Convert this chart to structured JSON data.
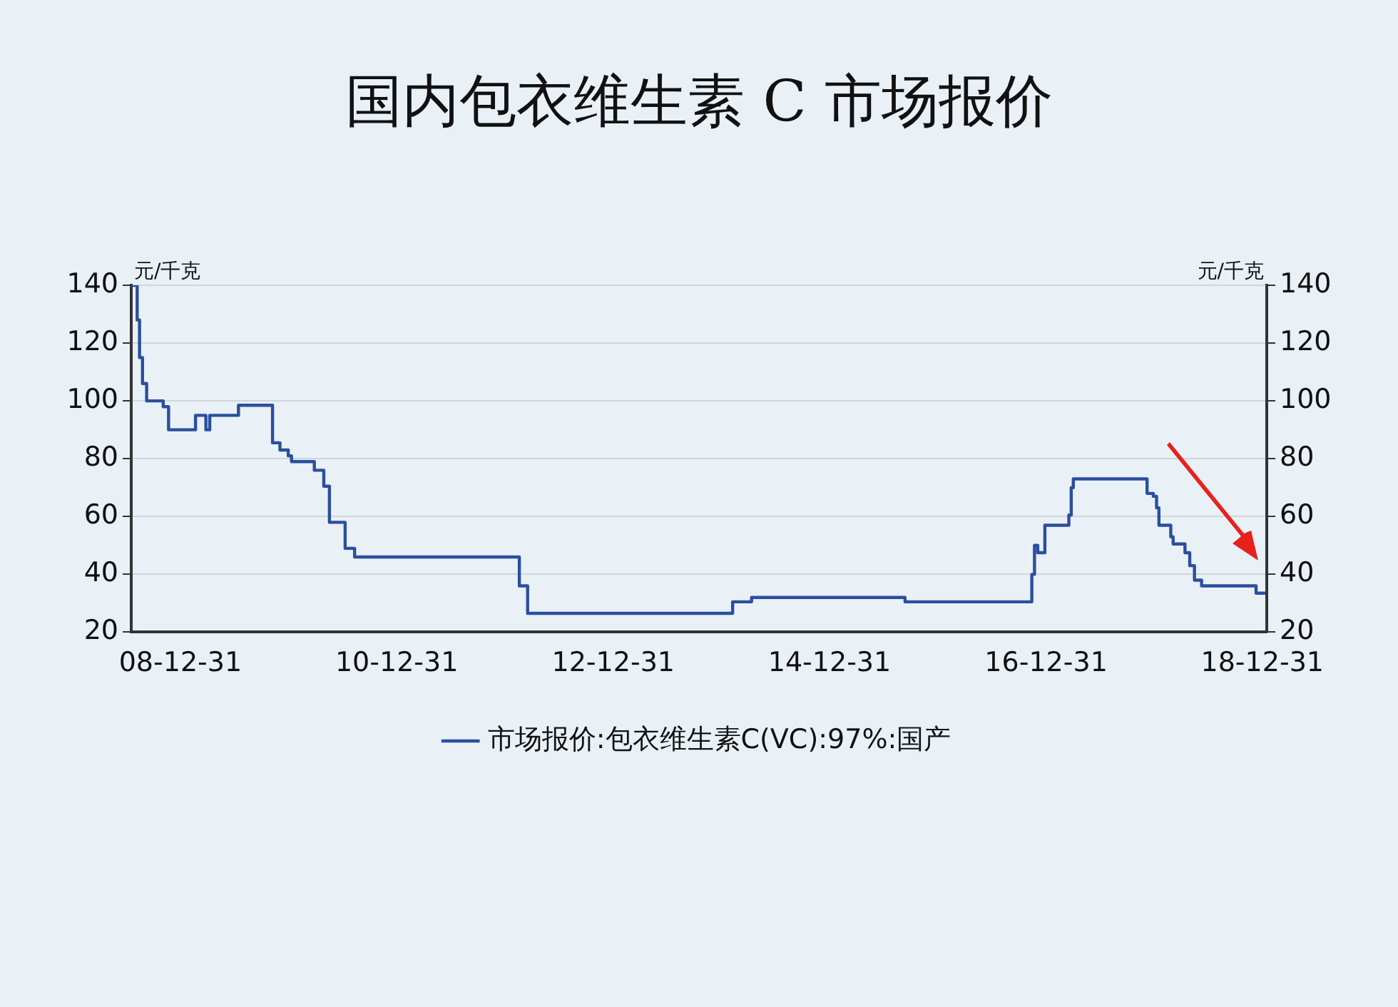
{
  "chart_data": {
    "type": "step",
    "title": "国内包衣维生素 C 市场报价",
    "ylabel": "元/千克",
    "y2label": "元/千克",
    "xlim": [
      "2008-07-18",
      "2019-01-15"
    ],
    "xticks": [
      {
        "value": "2008-12-31",
        "label": "08-12-31"
      },
      {
        "value": "2010-12-31",
        "label": "10-12-31"
      },
      {
        "value": "2012-12-31",
        "label": "12-12-31"
      },
      {
        "value": "2014-12-31",
        "label": "14-12-31"
      },
      {
        "value": "2016-12-31",
        "label": "16-12-31"
      },
      {
        "value": "2018-12-31",
        "label": "18-12-31"
      }
    ],
    "ylim": [
      20,
      140
    ],
    "yticks": [
      20,
      40,
      60,
      80,
      100,
      120,
      140
    ],
    "y2lim": [
      20,
      140
    ],
    "y2ticks": [
      20,
      40,
      60,
      80,
      100,
      120,
      140
    ],
    "grid": "y",
    "legend": "bottom",
    "series": [
      {
        "name": "市场报价:包衣维生素C(VC):97%:国产",
        "color": "#2b4f9c",
        "x": [
          "2008-07-18",
          "2008-08-07",
          "2008-08-15",
          "2008-08-25",
          "2008-09-08",
          "2008-11-03",
          "2008-11-21",
          "2009-01-27",
          "2009-02-20",
          "2009-03-23",
          "2009-03-27",
          "2009-04-09",
          "2009-07-15",
          "2009-11-07",
          "2009-12-02",
          "2009-12-30",
          "2010-01-10",
          "2010-03-28",
          "2010-04-29",
          "2010-05-18",
          "2010-07-10",
          "2010-08-11",
          "2012-02-18",
          "2012-03-17",
          "2014-02-07",
          "2014-04-12",
          "2015-09-12",
          "2016-11-13",
          "2016-11-22",
          "2016-12-03",
          "2016-12-27",
          "2017-03-18",
          "2017-03-26",
          "2017-04-02",
          "2017-12-07",
          "2017-12-28",
          "2018-01-08",
          "2018-01-16",
          "2018-02-25",
          "2018-03-05",
          "2018-04-14",
          "2018-04-30",
          "2018-05-16",
          "2018-06-09",
          "2018-06-25",
          "2018-12-10",
          "2019-01-10"
        ],
        "values": [
          140,
          128,
          115,
          106,
          100,
          98,
          90,
          90,
          95,
          95,
          90,
          95,
          98.5,
          85.5,
          83,
          81,
          79,
          76,
          70.5,
          58,
          49,
          46,
          36,
          26.5,
          30.5,
          32,
          30.5,
          40,
          50,
          47.5,
          57,
          60.5,
          70,
          73,
          68,
          67,
          63,
          57,
          53,
          50.5,
          47.5,
          43,
          38,
          36,
          36,
          33.5,
          33.5
        ]
      }
    ]
  }
}
